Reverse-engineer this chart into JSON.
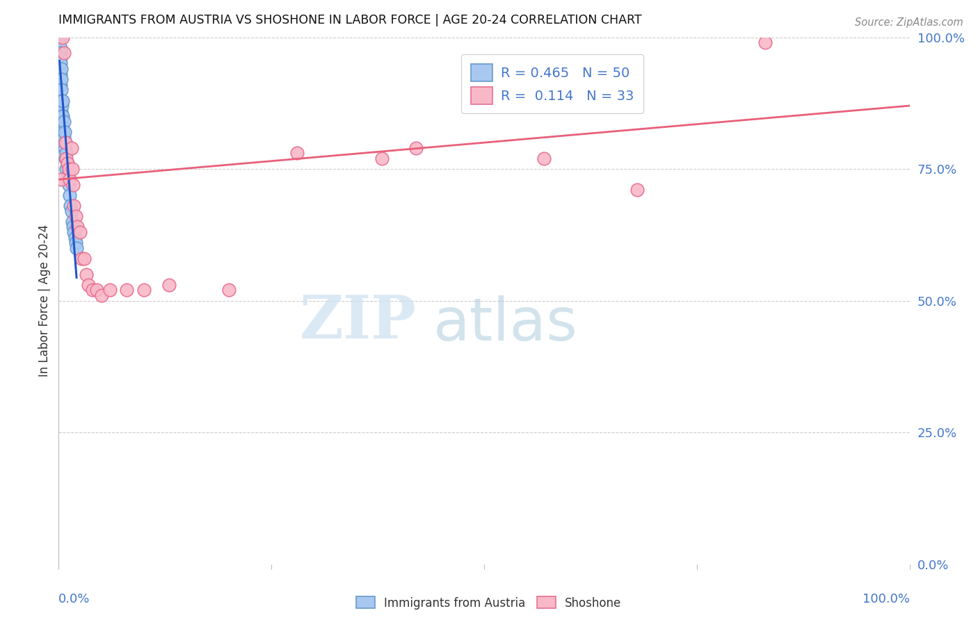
{
  "title": "IMMIGRANTS FROM AUSTRIA VS SHOSHONE IN LABOR FORCE | AGE 20-24 CORRELATION CHART",
  "source": "Source: ZipAtlas.com",
  "ylabel": "In Labor Force | Age 20-24",
  "ytick_vals": [
    0.0,
    0.25,
    0.5,
    0.75,
    1.0
  ],
  "ytick_labels": [
    "0.0%",
    "25.0%",
    "50.0%",
    "75.0%",
    "100.0%"
  ],
  "xlim": [
    0.0,
    1.0
  ],
  "ylim": [
    0.0,
    1.0
  ],
  "austria_color": "#a8c8f0",
  "austria_edge": "#6699cc",
  "shoshone_color": "#f9b8c8",
  "shoshone_edge": "#e87090",
  "trendline_austria_color": "#2255cc",
  "trendline_shoshone_color": "#e8607a",
  "austria_R": 0.465,
  "austria_N": 50,
  "shoshone_R": 0.114,
  "shoshone_N": 33,
  "austria_x": [
    0.001,
    0.001,
    0.001,
    0.001,
    0.001,
    0.001,
    0.001,
    0.001,
    0.001,
    0.001,
    0.002,
    0.002,
    0.002,
    0.002,
    0.002,
    0.002,
    0.003,
    0.003,
    0.003,
    0.003,
    0.003,
    0.003,
    0.004,
    0.004,
    0.004,
    0.004,
    0.005,
    0.005,
    0.005,
    0.006,
    0.006,
    0.007,
    0.007,
    0.008,
    0.008,
    0.009,
    0.009,
    0.01,
    0.01,
    0.011,
    0.012,
    0.013,
    0.014,
    0.015,
    0.016,
    0.017,
    0.018,
    0.019,
    0.02,
    0.021
  ],
  "austria_y": [
    1.0,
    1.0,
    1.0,
    1.0,
    1.0,
    1.0,
    1.0,
    1.0,
    1.0,
    1.0,
    0.98,
    0.97,
    0.96,
    0.95,
    0.93,
    0.91,
    0.94,
    0.92,
    0.9,
    0.88,
    0.86,
    0.84,
    0.87,
    0.85,
    0.83,
    0.81,
    0.88,
    0.85,
    0.82,
    0.84,
    0.81,
    0.82,
    0.79,
    0.8,
    0.77,
    0.78,
    0.75,
    0.76,
    0.73,
    0.74,
    0.72,
    0.7,
    0.68,
    0.67,
    0.65,
    0.64,
    0.63,
    0.62,
    0.61,
    0.6
  ],
  "shoshone_x": [
    0.003,
    0.005,
    0.006,
    0.008,
    0.009,
    0.01,
    0.012,
    0.013,
    0.015,
    0.016,
    0.017,
    0.018,
    0.02,
    0.022,
    0.025,
    0.027,
    0.03,
    0.032,
    0.035,
    0.04,
    0.045,
    0.05,
    0.06,
    0.08,
    0.1,
    0.13,
    0.2,
    0.28,
    0.38,
    0.42,
    0.57,
    0.68,
    0.83
  ],
  "shoshone_y": [
    0.73,
    1.0,
    0.97,
    0.8,
    0.77,
    0.76,
    0.75,
    0.73,
    0.79,
    0.75,
    0.72,
    0.68,
    0.66,
    0.64,
    0.63,
    0.58,
    0.58,
    0.55,
    0.53,
    0.52,
    0.52,
    0.51,
    0.52,
    0.52,
    0.52,
    0.53,
    0.52,
    0.78,
    0.77,
    0.79,
    0.77,
    0.71,
    0.99
  ],
  "shoshone_trendline_x0": 0.0,
  "shoshone_trendline_y0": 0.73,
  "shoshone_trendline_x1": 1.0,
  "shoshone_trendline_y1": 0.87,
  "background_color": "#ffffff",
  "grid_color": "#cccccc",
  "title_color": "#111111",
  "axis_label_color": "#4477cc",
  "watermark_zip_color": "#cce0f0",
  "watermark_atlas_color": "#b0ccdd"
}
